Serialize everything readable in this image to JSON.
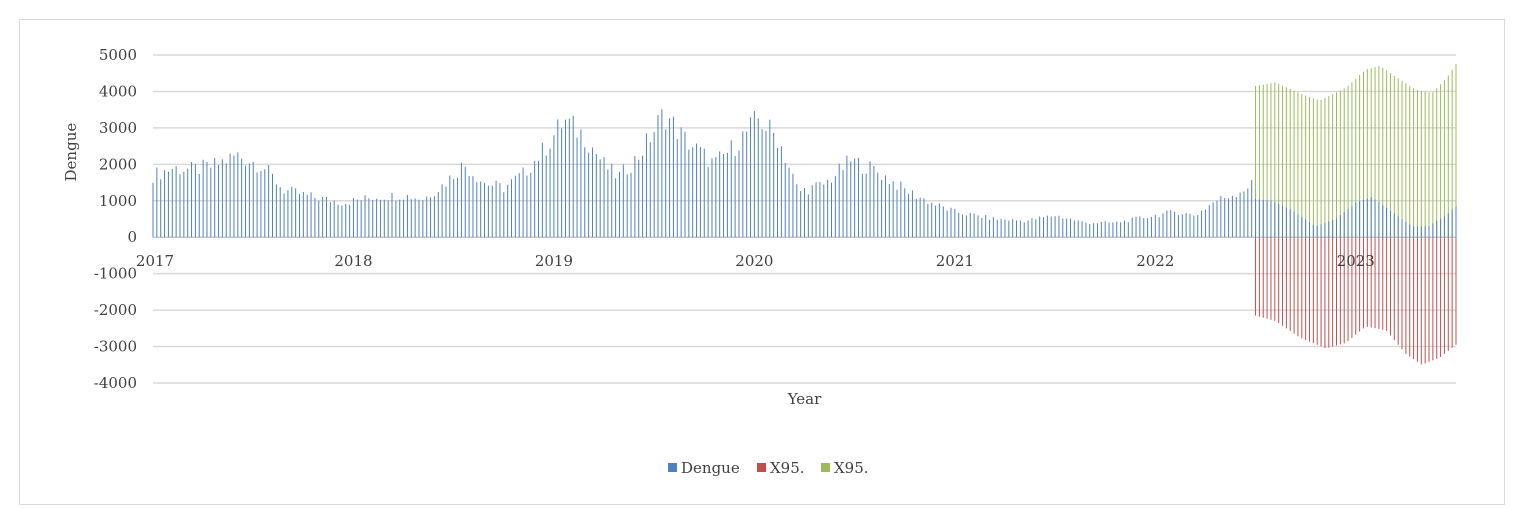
{
  "chart_data": {
    "type": "bar",
    "title": "",
    "xlabel": "Year",
    "ylabel": "Dengue",
    "ylim": [
      -4000,
      5000
    ],
    "yticks": [
      -4000,
      -3000,
      -2000,
      -1000,
      0,
      1000,
      2000,
      3000,
      4000,
      5000
    ],
    "x_tick_labels": [
      "2017",
      "2018",
      "2019",
      "2020",
      "2021",
      "2022",
      "2023"
    ],
    "grid": true,
    "legend_position": "bottom",
    "x_start_year": 2017,
    "x_end_year": 2023.5,
    "bar_step_weeks": 1,
    "series": [
      {
        "name": "Dengue",
        "color": "#4f81bd",
        "start_year": 2017.0,
        "anchors": [
          [
            2017.0,
            1700
          ],
          [
            2017.1,
            1900
          ],
          [
            2017.2,
            1850
          ],
          [
            2017.3,
            1950
          ],
          [
            2017.42,
            2250
          ],
          [
            2017.55,
            1950
          ],
          [
            2017.65,
            1300
          ],
          [
            2017.8,
            1100
          ],
          [
            2017.95,
            950
          ],
          [
            2018.1,
            1100
          ],
          [
            2018.25,
            1150
          ],
          [
            2018.35,
            1050
          ],
          [
            2018.45,
            1450
          ],
          [
            2018.55,
            2000
          ],
          [
            2018.65,
            1500
          ],
          [
            2018.75,
            1350
          ],
          [
            2018.85,
            1750
          ],
          [
            2018.95,
            2400
          ],
          [
            2019.05,
            3200
          ],
          [
            2019.15,
            2800
          ],
          [
            2019.25,
            2000
          ],
          [
            2019.32,
            1650
          ],
          [
            2019.42,
            2200
          ],
          [
            2019.55,
            3400
          ],
          [
            2019.65,
            2700
          ],
          [
            2019.8,
            2000
          ],
          [
            2019.9,
            2500
          ],
          [
            2020.02,
            3250
          ],
          [
            2020.12,
            2700
          ],
          [
            2020.22,
            1250
          ],
          [
            2020.35,
            1450
          ],
          [
            2020.48,
            2100
          ],
          [
            2020.6,
            1850
          ],
          [
            2020.75,
            1300
          ],
          [
            2020.9,
            900
          ],
          [
            2021.0,
            700
          ],
          [
            2021.2,
            500
          ],
          [
            2021.35,
            450
          ],
          [
            2021.5,
            600
          ],
          [
            2021.65,
            400
          ],
          [
            2021.8,
            400
          ],
          [
            2021.95,
            550
          ],
          [
            2022.1,
            700
          ],
          [
            2022.2,
            600
          ],
          [
            2022.3,
            1000
          ],
          [
            2022.4,
            1200
          ],
          [
            2022.5,
            1500
          ]
        ],
        "end_year": 2022.5
      },
      {
        "name": "X95.",
        "color": "#c0504d",
        "start_year": 2022.5,
        "anchors": [
          [
            2022.5,
            -2150
          ],
          [
            2022.6,
            -2300
          ],
          [
            2022.72,
            -2750
          ],
          [
            2022.85,
            -3050
          ],
          [
            2022.95,
            -2900
          ],
          [
            2023.05,
            -2450
          ],
          [
            2023.15,
            -2550
          ],
          [
            2023.25,
            -3200
          ],
          [
            2023.33,
            -3500
          ],
          [
            2023.42,
            -3300
          ],
          [
            2023.5,
            -2950
          ]
        ],
        "end_year": 2023.5
      },
      {
        "name": "X95.",
        "color": "#9bbb59",
        "start_year": 2022.5,
        "anchors": [
          [
            2022.5,
            4150
          ],
          [
            2022.6,
            4250
          ],
          [
            2022.72,
            3950
          ],
          [
            2022.82,
            3750
          ],
          [
            2022.95,
            4100
          ],
          [
            2023.05,
            4600
          ],
          [
            2023.12,
            4700
          ],
          [
            2023.2,
            4400
          ],
          [
            2023.3,
            4050
          ],
          [
            2023.38,
            3950
          ],
          [
            2023.45,
            4350
          ],
          [
            2023.5,
            4750
          ]
        ],
        "end_year": 2023.5
      },
      {
        "name": "Dengue",
        "color": "#4f81bd",
        "legend": false,
        "start_year": 2022.5,
        "anchors": [
          [
            2022.5,
            1050
          ],
          [
            2022.58,
            1000
          ],
          [
            2022.68,
            750
          ],
          [
            2022.8,
            300
          ],
          [
            2022.9,
            500
          ],
          [
            2023.0,
            950
          ],
          [
            2023.08,
            1100
          ],
          [
            2023.18,
            700
          ],
          [
            2023.28,
            300
          ],
          [
            2023.36,
            300
          ],
          [
            2023.45,
            600
          ],
          [
            2023.5,
            850
          ]
        ],
        "end_year": 2023.5
      }
    ]
  },
  "legend": {
    "items": [
      {
        "label": "Dengue",
        "color": "#4f81bd"
      },
      {
        "label": "X95.",
        "color": "#c0504d"
      },
      {
        "label": "X95.",
        "color": "#9bbb59"
      }
    ]
  }
}
